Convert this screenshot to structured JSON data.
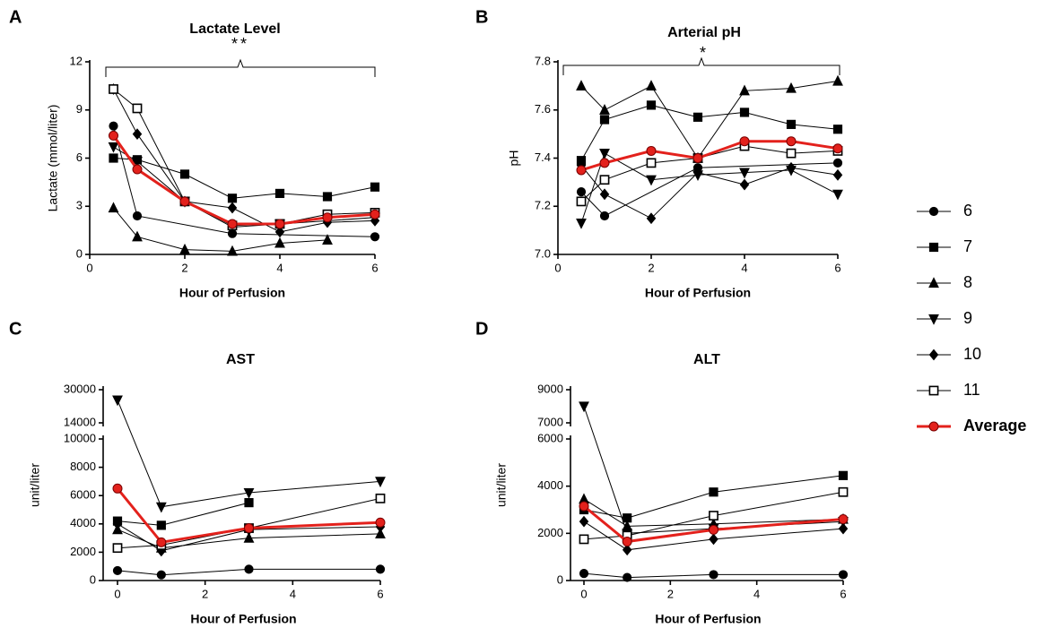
{
  "chart_data": [
    {
      "type": "line",
      "panel": "A",
      "title": "Lactate Level",
      "annotation": "**",
      "x_label": "Hour of Perfusion",
      "y_label": "Lactate (mmol/liter)",
      "xlim": [
        0,
        6
      ],
      "xticks": [
        0,
        2,
        4,
        6
      ],
      "ylim": [
        0,
        12
      ],
      "yticks": [
        0,
        3,
        6,
        9,
        12
      ],
      "series": [
        {
          "name": "6",
          "marker": "circle",
          "color": "#000000",
          "x": [
            0.5,
            1,
            3,
            6
          ],
          "values": [
            8.0,
            2.4,
            1.3,
            1.1
          ]
        },
        {
          "name": "7",
          "marker": "square",
          "color": "#000000",
          "x": [
            0.5,
            1,
            2,
            3,
            4,
            5,
            6
          ],
          "values": [
            6.0,
            5.9,
            5.0,
            3.5,
            3.8,
            3.6,
            4.2
          ]
        },
        {
          "name": "8",
          "marker": "triangle",
          "color": "#000000",
          "x": [
            0.5,
            1,
            2,
            3,
            4,
            5
          ],
          "values": [
            2.9,
            1.1,
            0.3,
            0.2,
            0.7,
            0.9
          ]
        },
        {
          "name": "9",
          "marker": "triangle-down",
          "color": "#000000",
          "x": [
            0.5,
            1,
            2,
            3,
            4,
            6
          ],
          "values": [
            6.7,
            5.8,
            3.3,
            1.7,
            1.9,
            2.3
          ]
        },
        {
          "name": "10",
          "marker": "diamond",
          "color": "#000000",
          "x": [
            0.5,
            1,
            2,
            3,
            4,
            5,
            6
          ],
          "values": [
            10.3,
            7.5,
            3.3,
            2.9,
            1.4,
            2.0,
            2.1
          ]
        },
        {
          "name": "11",
          "marker": "square-open",
          "color": "#000000",
          "x": [
            0.5,
            1,
            2,
            3,
            4,
            5,
            6
          ],
          "values": [
            10.3,
            9.1,
            3.3,
            1.8,
            1.9,
            2.5,
            2.6
          ]
        },
        {
          "name": "Average",
          "marker": "circle",
          "color": "#e3211c",
          "x": [
            0.5,
            1,
            2,
            3,
            4,
            5,
            6
          ],
          "values": [
            7.4,
            5.3,
            3.3,
            1.9,
            1.9,
            2.3,
            2.5
          ]
        }
      ]
    },
    {
      "type": "line",
      "panel": "B",
      "title": "Arterial pH",
      "annotation": "*",
      "x_label": "Hour of Perfusion",
      "y_label": "pH",
      "xlim": [
        0,
        6
      ],
      "xticks": [
        0,
        2,
        4,
        6
      ],
      "ylim": [
        7.0,
        7.8
      ],
      "yticks": [
        {
          "value": 7.0,
          "label": "7.0"
        },
        {
          "value": 7.2,
          "label": "7.2"
        },
        {
          "value": 7.4,
          "label": "7.4"
        },
        {
          "value": 7.6,
          "label": "7.6"
        },
        {
          "value": 7.8,
          "label": "7.8"
        }
      ],
      "series": [
        {
          "name": "6",
          "marker": "circle",
          "color": "#000000",
          "x": [
            0.5,
            1,
            3,
            6
          ],
          "values": [
            7.26,
            7.16,
            7.36,
            7.38
          ]
        },
        {
          "name": "7",
          "marker": "square",
          "color": "#000000",
          "x": [
            0.5,
            1,
            2,
            3,
            4,
            5,
            6
          ],
          "values": [
            7.39,
            7.56,
            7.62,
            7.57,
            7.59,
            7.54,
            7.52
          ]
        },
        {
          "name": "8",
          "marker": "triangle",
          "color": "#000000",
          "x": [
            0.5,
            1,
            2,
            3,
            4,
            5,
            6
          ],
          "values": [
            7.7,
            7.6,
            7.7,
            7.4,
            7.68,
            7.69,
            7.72
          ]
        },
        {
          "name": "9",
          "marker": "triangle-down",
          "color": "#000000",
          "x": [
            0.5,
            1,
            2,
            3,
            4,
            5,
            6
          ],
          "values": [
            7.13,
            7.42,
            7.31,
            7.33,
            7.34,
            7.35,
            7.25
          ]
        },
        {
          "name": "10",
          "marker": "diamond",
          "color": "#000000",
          "x": [
            0.5,
            1,
            2,
            3,
            4,
            5,
            6
          ],
          "values": [
            7.37,
            7.25,
            7.15,
            7.34,
            7.29,
            7.36,
            7.33
          ]
        },
        {
          "name": "11",
          "marker": "square-open",
          "color": "#000000",
          "x": [
            0.5,
            1,
            2,
            3,
            4,
            5,
            6
          ],
          "values": [
            7.22,
            7.31,
            7.38,
            7.4,
            7.45,
            7.42,
            7.43
          ]
        },
        {
          "name": "Average",
          "marker": "circle",
          "color": "#e3211c",
          "x": [
            0.5,
            1,
            2,
            3,
            4,
            5,
            6
          ],
          "values": [
            7.35,
            7.38,
            7.43,
            7.4,
            7.47,
            7.47,
            7.44
          ]
        }
      ]
    },
    {
      "type": "line",
      "panel": "C",
      "title": "AST",
      "x_label": "Hour of Perfusion",
      "y_label": "unit/liter",
      "xlim": [
        0,
        6
      ],
      "xticks": [
        0,
        2,
        4,
        6
      ],
      "ylim": [
        0,
        30000
      ],
      "y_break": [
        10000,
        14000
      ],
      "yticks": [
        0,
        2000,
        4000,
        6000,
        8000,
        10000,
        14000,
        30000
      ],
      "series": [
        {
          "name": "6",
          "marker": "circle",
          "color": "#000000",
          "x": [
            0,
            1,
            3,
            6
          ],
          "values": [
            700,
            400,
            800,
            800
          ]
        },
        {
          "name": "7",
          "marker": "square",
          "color": "#000000",
          "x": [
            0,
            1,
            3
          ],
          "values": [
            4200,
            3900,
            5500
          ]
        },
        {
          "name": "8",
          "marker": "triangle",
          "color": "#000000",
          "x": [
            0,
            1,
            3,
            6
          ],
          "values": [
            3600,
            2300,
            3000,
            3300
          ]
        },
        {
          "name": "9",
          "marker": "triangle-down",
          "color": "#000000",
          "x": [
            0,
            1,
            3,
            6
          ],
          "values": [
            25000,
            5200,
            6200,
            7000
          ]
        },
        {
          "name": "10",
          "marker": "diamond",
          "color": "#000000",
          "x": [
            0,
            1,
            3,
            6
          ],
          "values": [
            4000,
            2100,
            3600,
            3800
          ]
        },
        {
          "name": "11",
          "marker": "square-open",
          "color": "#000000",
          "x": [
            0,
            1,
            3,
            6
          ],
          "values": [
            2300,
            2500,
            3700,
            5800
          ]
        },
        {
          "name": "Average",
          "marker": "circle",
          "color": "#e3211c",
          "x": [
            0,
            1,
            3,
            6
          ],
          "values": [
            6500,
            2700,
            3700,
            4100
          ]
        }
      ]
    },
    {
      "type": "line",
      "panel": "D",
      "title": "ALT",
      "x_label": "Hour of Perfusion",
      "y_label": "unit/liter",
      "xlim": [
        0,
        6
      ],
      "xticks": [
        0,
        2,
        4,
        6
      ],
      "ylim": [
        0,
        9000
      ],
      "y_break": [
        6000,
        7000
      ],
      "yticks": [
        0,
        2000,
        4000,
        6000,
        7000,
        9000
      ],
      "series": [
        {
          "name": "6",
          "marker": "circle",
          "color": "#000000",
          "x": [
            0,
            1,
            3,
            6
          ],
          "values": [
            300,
            130,
            250,
            250
          ]
        },
        {
          "name": "7",
          "marker": "square",
          "color": "#000000",
          "x": [
            0,
            1,
            3,
            6
          ],
          "values": [
            3000,
            2650,
            3750,
            4450
          ]
        },
        {
          "name": "8",
          "marker": "triangle",
          "color": "#000000",
          "x": [
            0,
            1,
            3,
            6
          ],
          "values": [
            3450,
            2300,
            2400,
            2600
          ]
        },
        {
          "name": "9",
          "marker": "triangle-down",
          "color": "#000000",
          "x": [
            0,
            1,
            3,
            6
          ],
          "values": [
            8000,
            2000,
            2200,
            2500
          ]
        },
        {
          "name": "10",
          "marker": "diamond",
          "color": "#000000",
          "x": [
            0,
            1,
            3,
            6
          ],
          "values": [
            2500,
            1300,
            1750,
            2200
          ]
        },
        {
          "name": "11",
          "marker": "square-open",
          "color": "#000000",
          "x": [
            0,
            1,
            3,
            6
          ],
          "values": [
            1750,
            1900,
            2750,
            3750
          ]
        },
        {
          "name": "Average",
          "marker": "circle",
          "color": "#e3211c",
          "x": [
            0,
            1,
            3,
            6
          ],
          "values": [
            3150,
            1650,
            2150,
            2600
          ]
        }
      ]
    }
  ]
}
